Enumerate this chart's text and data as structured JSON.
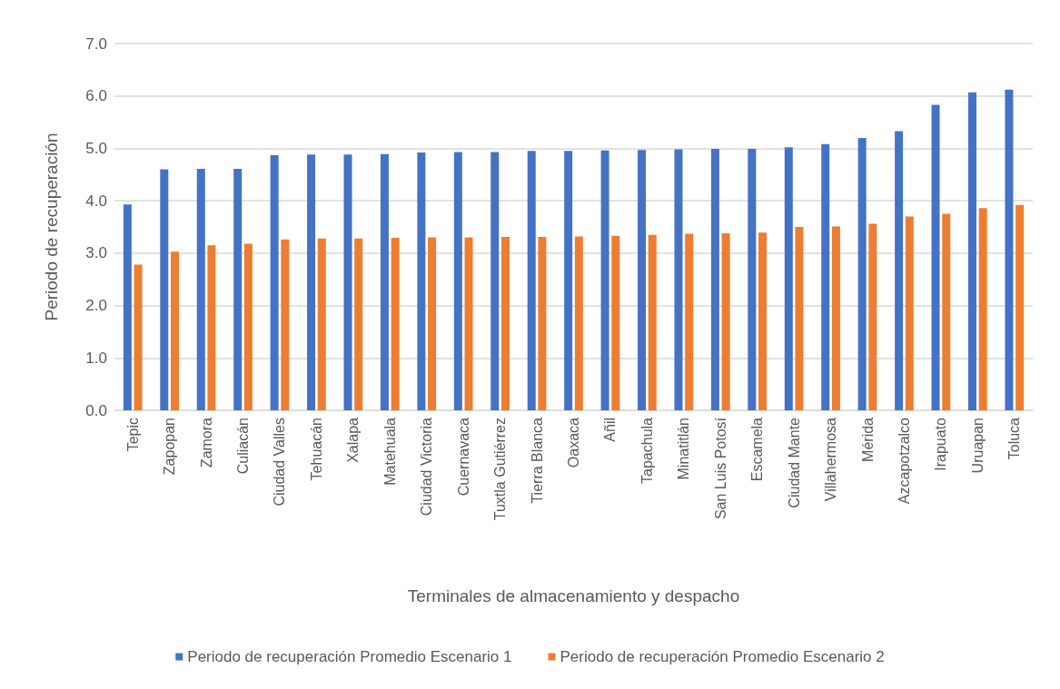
{
  "chart_data": {
    "type": "bar",
    "xlabel": "Terminales de almacenamiento y despacho",
    "ylabel": "Periodo de recuperación",
    "categories": [
      "Tepic",
      "Zapopan",
      "Zamora",
      "Culiacán",
      "Ciudad Valles",
      "Tehuacán",
      "Xalapa",
      "Matehuala",
      "Ciudad Victoria",
      "Cuernavaca",
      "Tuxtla Gutiérrez",
      "Tierra Blanca",
      "Oaxaca",
      "Añil",
      "Tapachula",
      "Minatitlán",
      "San Luis Potosí",
      "Escamela",
      "Ciudad Mante",
      "Villahermosa",
      "Mérida",
      "Azcapotzalco",
      "Irapuato",
      "Uruapan",
      "Toluca"
    ],
    "series": [
      {
        "name": "Periodo de recuperación Promedio Escenario 1",
        "color": "#4472c4",
        "values": [
          3.93,
          4.6,
          4.61,
          4.61,
          4.87,
          4.88,
          4.88,
          4.89,
          4.92,
          4.93,
          4.93,
          4.95,
          4.95,
          4.96,
          4.97,
          4.98,
          4.99,
          4.99,
          5.02,
          5.08,
          5.2,
          5.33,
          5.83,
          6.07,
          6.12
        ]
      },
      {
        "name": "Periodo de recuperación Promedio Escenario 2",
        "color": "#ed7d31",
        "values": [
          2.78,
          3.03,
          3.15,
          3.18,
          3.26,
          3.28,
          3.28,
          3.29,
          3.3,
          3.3,
          3.31,
          3.31,
          3.32,
          3.33,
          3.35,
          3.37,
          3.38,
          3.39,
          3.5,
          3.51,
          3.56,
          3.7,
          3.75,
          3.86,
          3.92
        ]
      }
    ],
    "ylim": [
      0,
      7
    ],
    "yticks": [
      {
        "value": 0,
        "label": "0.0"
      },
      {
        "value": 1,
        "label": "1.0"
      },
      {
        "value": 2,
        "label": "2.0"
      },
      {
        "value": 3,
        "label": "3.0"
      },
      {
        "value": 4,
        "label": "4.0"
      },
      {
        "value": 5,
        "label": "5.0"
      },
      {
        "value": 6,
        "label": "6.0"
      },
      {
        "value": 7,
        "label": "7.0"
      }
    ],
    "grid": "y",
    "legend": "bottom"
  }
}
